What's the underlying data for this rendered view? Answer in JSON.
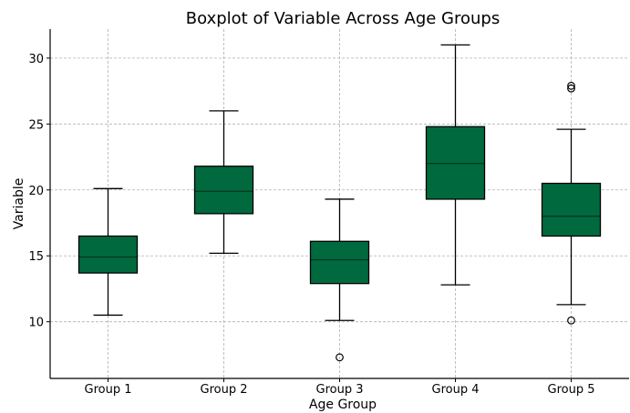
{
  "chart_data": {
    "type": "boxplot",
    "title": "Boxplot of Variable Across Age Groups",
    "xlabel": "Age Group",
    "ylabel": "Variable",
    "ylim": [
      5.7,
      32.2
    ],
    "yticks": [
      10,
      15,
      20,
      25,
      30
    ],
    "grid": true,
    "box_color": "#006a3e",
    "categories": [
      "Group 1",
      "Group 2",
      "Group 3",
      "Group 4",
      "Group 5"
    ],
    "boxes": [
      {
        "whisker_low": 10.5,
        "q1": 13.7,
        "median": 14.9,
        "q3": 16.5,
        "whisker_high": 20.1,
        "outliers": []
      },
      {
        "whisker_low": 15.2,
        "q1": 18.2,
        "median": 19.9,
        "q3": 21.8,
        "whisker_high": 26.0,
        "outliers": []
      },
      {
        "whisker_low": 10.1,
        "q1": 12.9,
        "median": 14.7,
        "q3": 16.1,
        "whisker_high": 19.3,
        "outliers": [
          7.3
        ]
      },
      {
        "whisker_low": 12.8,
        "q1": 19.3,
        "median": 22.0,
        "q3": 24.8,
        "whisker_high": 31.0,
        "outliers": []
      },
      {
        "whisker_low": 11.3,
        "q1": 16.5,
        "median": 18.0,
        "q3": 20.5,
        "whisker_high": 24.6,
        "outliers": [
          10.1,
          27.7,
          27.9
        ]
      }
    ]
  }
}
